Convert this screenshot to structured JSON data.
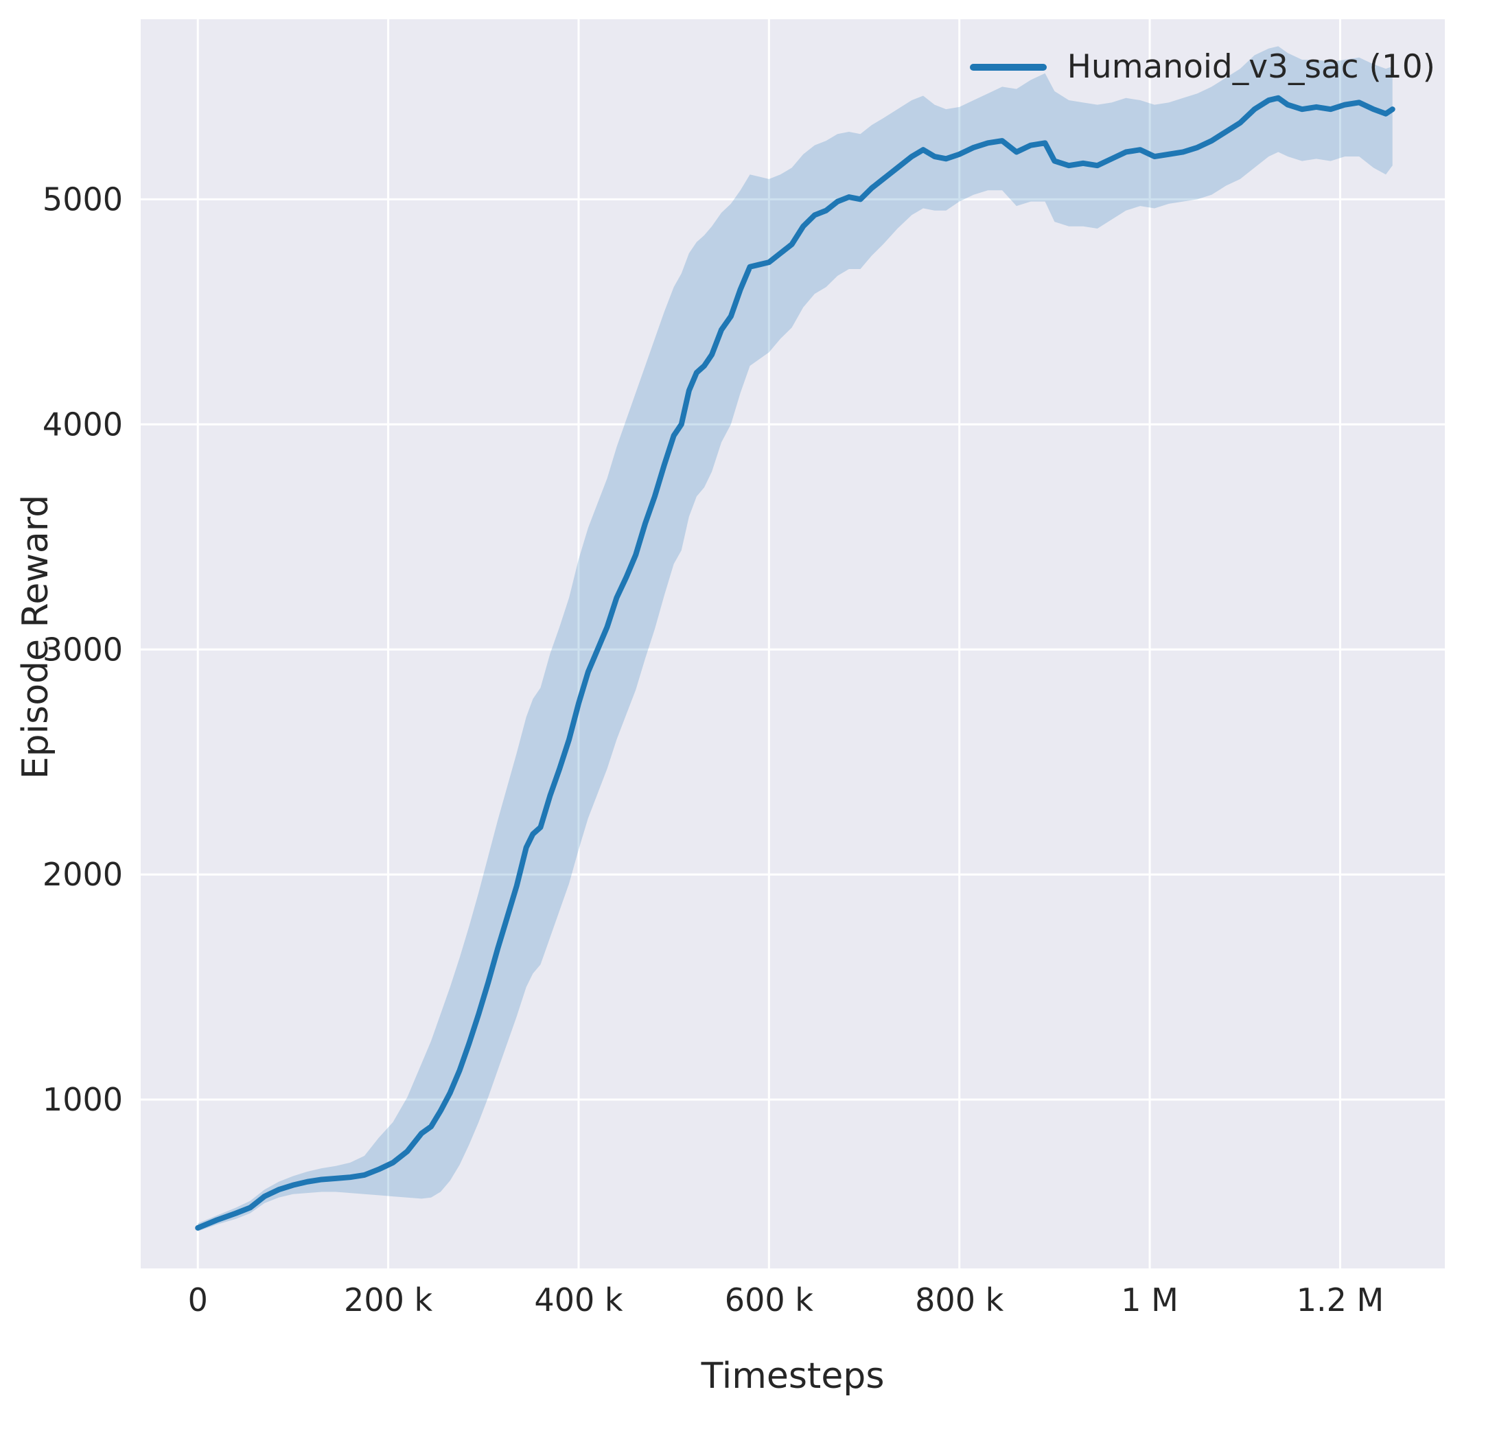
{
  "figure": {
    "background": "#ffffff",
    "plot_background": "#eaeaf2",
    "grid_color": "#ffffff",
    "text_color": "#262626"
  },
  "chart_data": {
    "type": "line",
    "title": "",
    "xlabel": "Timesteps",
    "ylabel": "Episode Reward",
    "grid": true,
    "legend": {
      "position": "upper right",
      "entries": [
        "Humanoid_v3_sac (10)"
      ]
    },
    "line_color": "#1f77b4",
    "band_color": "#1f77b4",
    "band_alpha": 0.22,
    "xlim": [
      -60000,
      1310000
    ],
    "ylim": [
      250,
      5800
    ],
    "x_ticks": {
      "values": [
        0,
        200000,
        400000,
        600000,
        800000,
        1000000,
        1200000
      ],
      "labels": [
        "0",
        "200 k",
        "400 k",
        "600 k",
        "800 k",
        "1 M",
        "1.2 M"
      ]
    },
    "y_ticks": {
      "values": [
        1000,
        2000,
        3000,
        4000,
        5000
      ],
      "labels": [
        "1000",
        "2000",
        "3000",
        "4000",
        "5000"
      ]
    },
    "series": [
      {
        "name": "Humanoid_v3_sac (10)",
        "x": [
          0,
          20000,
          40000,
          55000,
          70000,
          85000,
          100000,
          115000,
          130000,
          145000,
          160000,
          175000,
          190000,
          205000,
          220000,
          235000,
          245000,
          255000,
          265000,
          275000,
          285000,
          295000,
          305000,
          315000,
          325000,
          335000,
          345000,
          352000,
          360000,
          370000,
          380000,
          390000,
          400000,
          410000,
          420000,
          430000,
          440000,
          450000,
          460000,
          470000,
          480000,
          490000,
          500000,
          508000,
          516000,
          524000,
          532000,
          540000,
          550000,
          560000,
          570000,
          580000,
          590000,
          600000,
          612000,
          624000,
          636000,
          648000,
          660000,
          672000,
          684000,
          696000,
          708000,
          720000,
          735000,
          750000,
          762000,
          774000,
          786000,
          800000,
          815000,
          830000,
          845000,
          860000,
          875000,
          890000,
          900000,
          915000,
          930000,
          945000,
          960000,
          975000,
          990000,
          1005000,
          1020000,
          1035000,
          1050000,
          1065000,
          1080000,
          1095000,
          1110000,
          1125000,
          1135000,
          1145000,
          1160000,
          1175000,
          1190000,
          1205000,
          1220000,
          1235000,
          1248000,
          1255000
        ],
        "mean": [
          430,
          465,
          495,
          520,
          570,
          600,
          620,
          635,
          645,
          650,
          655,
          665,
          690,
          720,
          770,
          850,
          880,
          950,
          1030,
          1130,
          1250,
          1380,
          1520,
          1670,
          1810,
          1950,
          2120,
          2180,
          2210,
          2350,
          2470,
          2600,
          2760,
          2900,
          3000,
          3100,
          3230,
          3320,
          3420,
          3560,
          3680,
          3820,
          3950,
          4000,
          4150,
          4230,
          4260,
          4310,
          4420,
          4480,
          4600,
          4700,
          4710,
          4720,
          4760,
          4800,
          4880,
          4930,
          4950,
          4990,
          5010,
          5000,
          5050,
          5090,
          5140,
          5190,
          5220,
          5190,
          5180,
          5200,
          5230,
          5250,
          5260,
          5210,
          5240,
          5250,
          5170,
          5150,
          5160,
          5150,
          5180,
          5210,
          5220,
          5190,
          5200,
          5210,
          5230,
          5260,
          5300,
          5340,
          5400,
          5440,
          5450,
          5420,
          5400,
          5410,
          5400,
          5420,
          5430,
          5400,
          5380,
          5400
        ],
        "lower": [
          415,
          445,
          470,
          495,
          540,
          565,
          580,
          585,
          590,
          590,
          585,
          580,
          575,
          570,
          565,
          560,
          565,
          590,
          640,
          710,
          800,
          900,
          1010,
          1130,
          1250,
          1370,
          1500,
          1560,
          1600,
          1720,
          1840,
          1960,
          2110,
          2250,
          2360,
          2470,
          2600,
          2710,
          2820,
          2960,
          3090,
          3240,
          3380,
          3440,
          3590,
          3680,
          3720,
          3790,
          3920,
          4000,
          4140,
          4260,
          4290,
          4320,
          4380,
          4430,
          4520,
          4580,
          4610,
          4660,
          4690,
          4690,
          4750,
          4800,
          4870,
          4930,
          4960,
          4950,
          4950,
          4990,
          5020,
          5040,
          5040,
          4970,
          4990,
          4990,
          4900,
          4880,
          4880,
          4870,
          4910,
          4950,
          4970,
          4960,
          4980,
          4990,
          5000,
          5020,
          5060,
          5090,
          5140,
          5190,
          5210,
          5190,
          5170,
          5180,
          5170,
          5190,
          5190,
          5140,
          5110,
          5150
        ],
        "upper": [
          450,
          485,
          520,
          550,
          600,
          635,
          660,
          680,
          695,
          705,
          720,
          750,
          830,
          900,
          1010,
          1160,
          1260,
          1380,
          1500,
          1630,
          1770,
          1920,
          2080,
          2240,
          2390,
          2540,
          2700,
          2780,
          2830,
          2980,
          3100,
          3230,
          3400,
          3540,
          3650,
          3760,
          3900,
          4020,
          4140,
          4260,
          4380,
          4500,
          4610,
          4670,
          4760,
          4810,
          4840,
          4880,
          4940,
          4980,
          5040,
          5110,
          5100,
          5090,
          5110,
          5140,
          5200,
          5240,
          5260,
          5290,
          5300,
          5290,
          5330,
          5360,
          5400,
          5440,
          5460,
          5420,
          5400,
          5410,
          5440,
          5470,
          5500,
          5490,
          5530,
          5560,
          5480,
          5440,
          5430,
          5420,
          5430,
          5450,
          5440,
          5420,
          5430,
          5450,
          5470,
          5500,
          5540,
          5580,
          5640,
          5670,
          5680,
          5650,
          5620,
          5620,
          5610,
          5620,
          5630,
          5600,
          5580,
          5590
        ]
      }
    ]
  }
}
